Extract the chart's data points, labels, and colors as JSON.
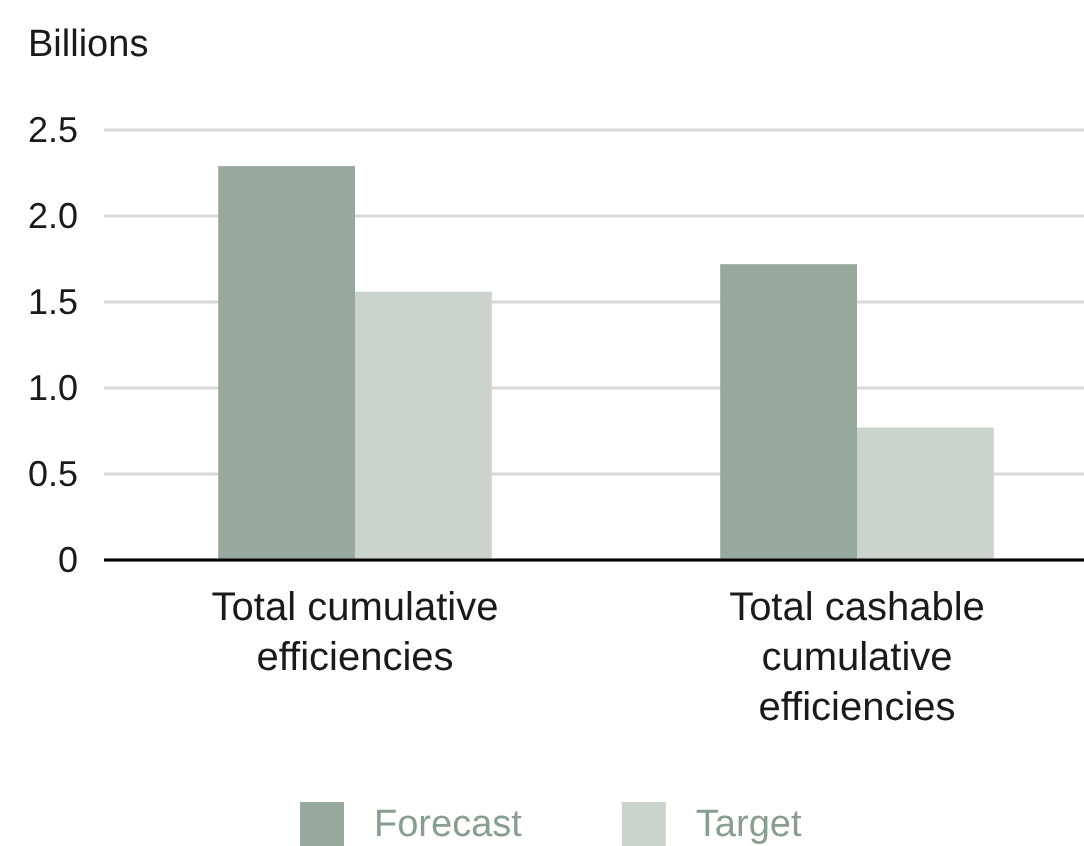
{
  "chart_data": {
    "type": "bar",
    "ylabel": "Billions",
    "categories": [
      "Total cumulative efficiencies",
      "Total cashable cumulative efficiencies"
    ],
    "series": [
      {
        "name": "Forecast",
        "color": "#96a99c",
        "values": [
          2.29,
          1.72
        ]
      },
      {
        "name": "Target",
        "color": "#cbd4cc",
        "values": [
          1.56,
          0.77
        ]
      }
    ],
    "ylim": [
      0,
      2.5
    ],
    "yticks": [
      0,
      0.5,
      {
        "value": 1,
        "label": "1.0"
      },
      1.5,
      {
        "value": 2,
        "label": "2.0"
      },
      2.5
    ],
    "grid": "y",
    "legend": "bottom"
  }
}
